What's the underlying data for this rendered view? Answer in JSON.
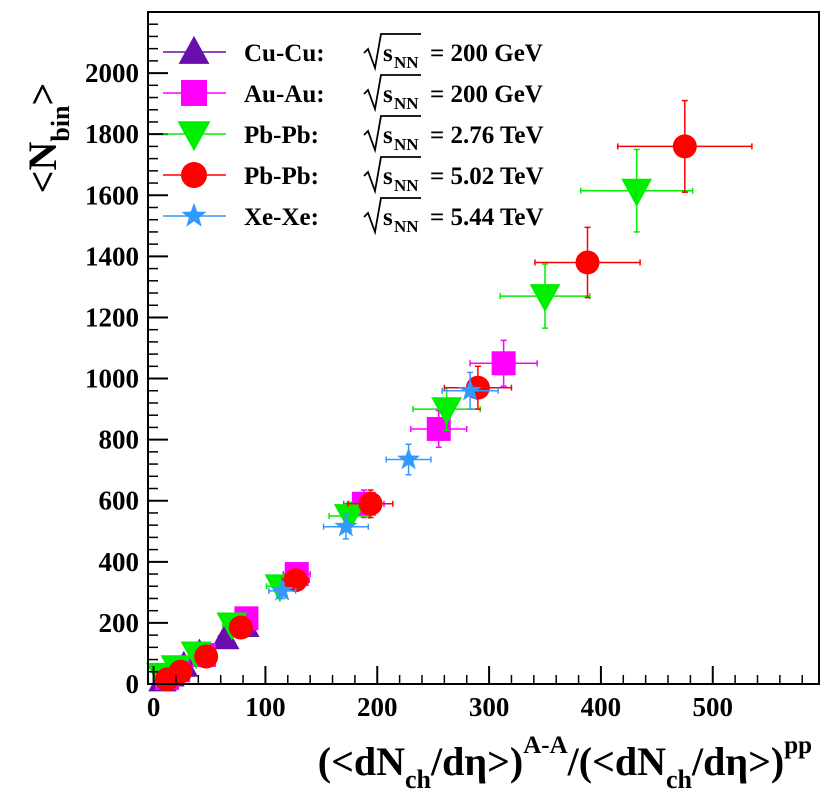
{
  "chart_data": {
    "type": "scatter",
    "xlabel": {
      "open": "(<dN",
      "sub1": "ch",
      "mid1": "/dη>)",
      "sup1": "A-A",
      "mid2": "/(<dN",
      "sub2": "ch",
      "mid3": "/dη>)",
      "sup2": "pp"
    },
    "ylabel": {
      "main": "<N",
      "sub": "bin",
      "close": ">"
    },
    "xlim": [
      -5,
      595
    ],
    "ylim": [
      0,
      2200
    ],
    "x_ticks": [
      "0",
      "100",
      "200",
      "300",
      "400",
      "500"
    ],
    "x_tick_values": [
      0,
      100,
      200,
      300,
      400,
      500
    ],
    "y_ticks": [
      "0",
      "200",
      "400",
      "600",
      "800",
      "1000",
      "1200",
      "1400",
      "1600",
      "1800",
      "2000"
    ],
    "y_tick_values": [
      0,
      200,
      400,
      600,
      800,
      1000,
      1200,
      1400,
      1600,
      1800,
      2000
    ],
    "legend_position": "top-left",
    "series": [
      {
        "name": "Cu-Cu",
        "energy": "= 200 GeV",
        "marker": "triangle-up",
        "color": "#6a0dad",
        "points": [
          {
            "x": 8,
            "y": 12,
            "xerr": 1,
            "yerr": 2
          },
          {
            "x": 15,
            "y": 28,
            "xerr": 2,
            "yerr": 3
          },
          {
            "x": 27,
            "y": 60,
            "xerr": 3,
            "yerr": 6
          },
          {
            "x": 41,
            "y": 100,
            "xerr": 4,
            "yerr": 9
          },
          {
            "x": 64,
            "y": 150,
            "xerr": 6,
            "yerr": 13
          },
          {
            "x": 82,
            "y": 190,
            "xerr": 7,
            "yerr": 16
          }
        ]
      },
      {
        "name": "Au-Au",
        "energy": "= 200 GeV",
        "marker": "square",
        "color": "#ff00ff",
        "points": [
          {
            "x": 12,
            "y": 20,
            "xerr": 2,
            "yerr": 3
          },
          {
            "x": 22,
            "y": 45,
            "xerr": 3,
            "yerr": 5
          },
          {
            "x": 45,
            "y": 95,
            "xerr": 5,
            "yerr": 10
          },
          {
            "x": 83,
            "y": 215,
            "xerr": 8,
            "yerr": 20
          },
          {
            "x": 128,
            "y": 360,
            "xerr": 12,
            "yerr": 30
          },
          {
            "x": 188,
            "y": 590,
            "xerr": 18,
            "yerr": 45
          },
          {
            "x": 255,
            "y": 835,
            "xerr": 25,
            "yerr": 60
          },
          {
            "x": 313,
            "y": 1050,
            "xerr": 30,
            "yerr": 75
          }
        ]
      },
      {
        "name": "Pb-Pb",
        "energy": "= 2.76 TeV",
        "marker": "triangle-down",
        "color": "#00ee00",
        "points": [
          {
            "x": 7,
            "y": 30,
            "xerr": 1,
            "yerr": 3
          },
          {
            "x": 20,
            "y": 55,
            "xerr": 3,
            "yerr": 6
          },
          {
            "x": 38,
            "y": 100,
            "xerr": 5,
            "yerr": 10
          },
          {
            "x": 70,
            "y": 195,
            "xerr": 8,
            "yerr": 18
          },
          {
            "x": 113,
            "y": 320,
            "xerr": 12,
            "yerr": 28
          },
          {
            "x": 175,
            "y": 550,
            "xerr": 18,
            "yerr": 45
          },
          {
            "x": 262,
            "y": 900,
            "xerr": 30,
            "yerr": 70
          },
          {
            "x": 350,
            "y": 1270,
            "xerr": 40,
            "yerr": 105
          },
          {
            "x": 432,
            "y": 1615,
            "xerr": 50,
            "yerr": 135
          }
        ]
      },
      {
        "name": "Pb-Pb",
        "energy": "= 5.02 TeV",
        "marker": "circle",
        "color": "#ff0000",
        "points": [
          {
            "x": 12,
            "y": 15,
            "xerr": 2,
            "yerr": 2
          },
          {
            "x": 24,
            "y": 40,
            "xerr": 3,
            "yerr": 4
          },
          {
            "x": 47,
            "y": 90,
            "xerr": 5,
            "yerr": 9
          },
          {
            "x": 78,
            "y": 185,
            "xerr": 8,
            "yerr": 16
          },
          {
            "x": 127,
            "y": 340,
            "xerr": 12,
            "yerr": 28
          },
          {
            "x": 194,
            "y": 590,
            "xerr": 20,
            "yerr": 45
          },
          {
            "x": 290,
            "y": 970,
            "xerr": 30,
            "yerr": 70
          },
          {
            "x": 388,
            "y": 1380,
            "xerr": 47,
            "yerr": 115
          },
          {
            "x": 475,
            "y": 1760,
            "xerr": 60,
            "yerr": 150
          }
        ]
      },
      {
        "name": "Xe-Xe",
        "energy": "= 5.44 TeV",
        "marker": "star",
        "color": "#3399ff",
        "points": [
          {
            "x": 115,
            "y": 305,
            "xerr": 12,
            "yerr": 25
          },
          {
            "x": 172,
            "y": 515,
            "xerr": 20,
            "yerr": 40
          },
          {
            "x": 228,
            "y": 735,
            "xerr": 20,
            "yerr": 50
          },
          {
            "x": 283,
            "y": 960,
            "xerr": 25,
            "yerr": 60
          }
        ]
      }
    ]
  }
}
